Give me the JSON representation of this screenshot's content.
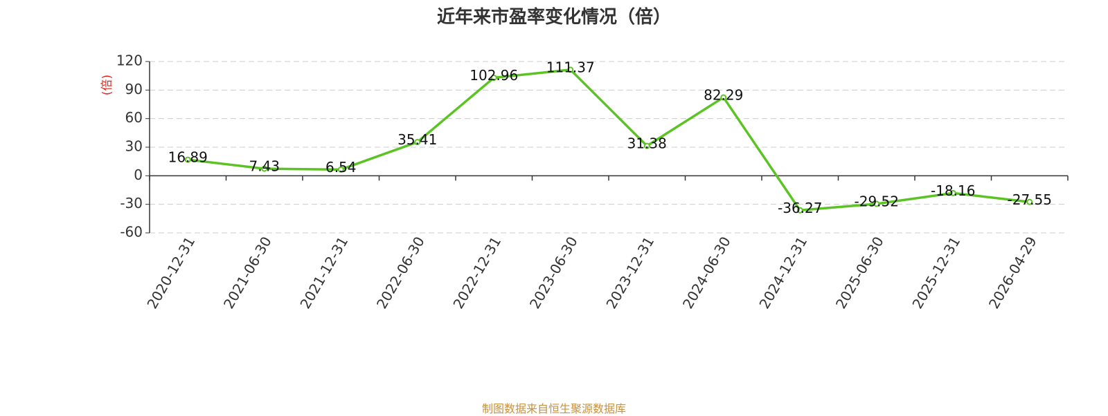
{
  "title": "近年来市盈率变化情况（倍）",
  "source_note": "制图数据来自恒生聚源数据库",
  "colors": {
    "line": "#5bc424",
    "axis": "#333333",
    "grid": "#cccccc",
    "ylabel": "#e0241b",
    "source": "#c8913a",
    "text": "#333333"
  },
  "chart_data": {
    "type": "line",
    "title": "近年来市盈率变化情况（倍）",
    "xlabel": "",
    "ylabel": "(倍)",
    "ylim": [
      -60,
      120
    ],
    "yticks": [
      120,
      90,
      60,
      30,
      0,
      -30,
      -60
    ],
    "grid": true,
    "legend": "none",
    "categories": [
      "2020-12-31",
      "2021-06-30",
      "2021-12-31",
      "2022-06-30",
      "2022-12-31",
      "2023-06-30",
      "2023-12-31",
      "2024-06-30",
      "2024-12-31",
      "2025-06-30",
      "2025-12-31",
      "2026-04-29"
    ],
    "series": [
      {
        "values": [
          16.89,
          7.43,
          6.54,
          35.41,
          102.96,
          111.37,
          31.38,
          82.29,
          -36.27,
          -29.52,
          -18.16,
          -27.55
        ],
        "labels": [
          "16.89",
          "7.43",
          "6.54",
          "35.41",
          "102.96",
          "111.37",
          "31.38",
          "82.29",
          "-36.27",
          "-29.52",
          "-18.16",
          "-27.55"
        ]
      }
    ]
  }
}
